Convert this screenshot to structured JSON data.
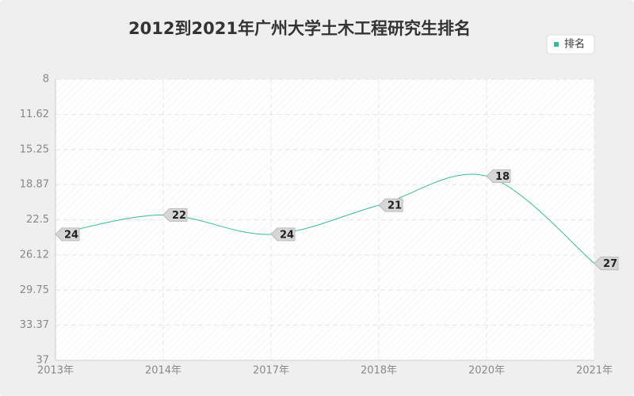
{
  "chart_data": {
    "type": "line",
    "title": "2012到2021年广州大学土木工程研究生排名",
    "categories": [
      "2013年",
      "2014年",
      "2017年",
      "2018年",
      "2020年",
      "2021年"
    ],
    "series": [
      {
        "name": "排名",
        "color": "#3dba8c",
        "values": [
          24,
          22,
          24,
          21,
          18,
          27
        ]
      }
    ],
    "ylim": [
      8,
      37
    ],
    "y_reversed": true,
    "yticks": [
      8,
      11.62,
      15.25,
      18.87,
      22.5,
      26.12,
      29.75,
      33.37,
      37
    ],
    "grid": true,
    "legend": "top-right"
  }
}
